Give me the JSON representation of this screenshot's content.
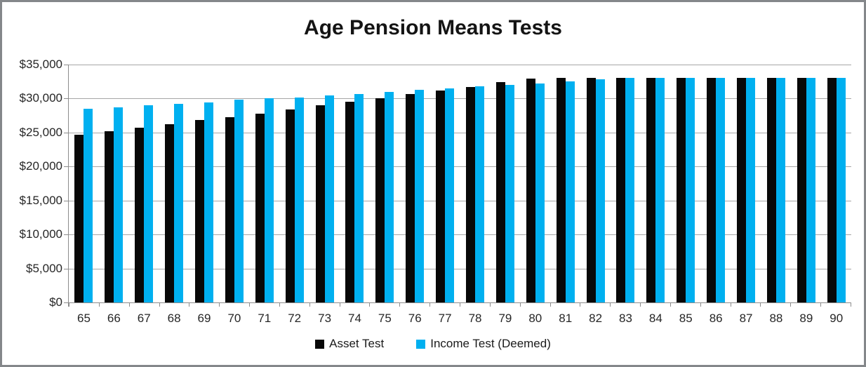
{
  "chart_data": {
    "type": "bar",
    "title": "Age Pension Means Tests",
    "categories": [
      "65",
      "66",
      "67",
      "68",
      "69",
      "70",
      "71",
      "72",
      "73",
      "74",
      "75",
      "76",
      "77",
      "78",
      "79",
      "80",
      "81",
      "82",
      "83",
      "84",
      "85",
      "86",
      "87",
      "88",
      "89",
      "90"
    ],
    "series": [
      {
        "name": "Asset Test",
        "color": "#080808",
        "values": [
          24700,
          25200,
          25700,
          26200,
          26800,
          27300,
          27800,
          28400,
          29000,
          29500,
          30000,
          30700,
          31200,
          31700,
          32400,
          32900,
          33000,
          33000,
          33000,
          33000,
          33000,
          33000,
          33000,
          33000,
          33000,
          33000
        ]
      },
      {
        "name": "Income Test (Deemed)",
        "color": "#00b0f0",
        "values": [
          28500,
          28700,
          29000,
          29200,
          29400,
          29800,
          30000,
          30200,
          30500,
          30700,
          31000,
          31300,
          31500,
          31800,
          32000,
          32200,
          32500,
          32800,
          33000,
          33000,
          33000,
          33000,
          33000,
          33000,
          33000,
          33000
        ]
      }
    ],
    "xlabel": "",
    "ylabel": "",
    "y_axis": {
      "min": 0,
      "max": 35000,
      "tick_interval": 5000,
      "tick_labels_top_to_bottom": [
        "$35,000",
        "$30,000",
        "$25,000",
        "$20,000",
        "$15,000",
        "$10,000",
        "$5,000",
        "$0"
      ]
    },
    "grid": true,
    "legend_position": "bottom"
  },
  "colors": {
    "background": "#ffffff",
    "frame_border": "#84878a",
    "gridline": "#a6a6a6",
    "axis_line": "#8c8c8c",
    "axis_text": "#262626"
  }
}
